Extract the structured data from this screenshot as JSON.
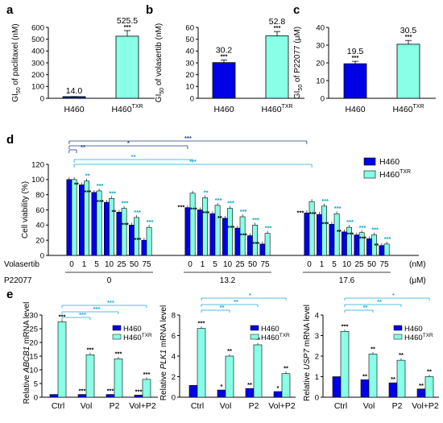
{
  "colors": {
    "h460": "#0000e6",
    "h460txr": "#88ffe6",
    "blue_bracket": "#1f3b7a",
    "cyan_bracket": "#1aaad4",
    "cyan_star": "#0aa4cc"
  },
  "panels": {
    "a": "a",
    "b": "b",
    "c": "c",
    "d": "d",
    "e": "e"
  },
  "ylabel_gi50_prefix": "GI",
  "ylabel_gi50_sub": "50",
  "ylabel_viability": "Cell viability (%)",
  "ylabel_relative": "Relative",
  "ylabel_mrna": "mRNA level",
  "sig3": "***",
  "sig2": "**",
  "sig1": "*",
  "legend": {
    "h460": "H460",
    "txr_base": "H460",
    "txr_sup": "TXR"
  },
  "unit_nm": "(nM)",
  "unit_um": "(μM)",
  "row_labels": {
    "volasertib": "Volasertib",
    "p22077": "P22077"
  },
  "chart_data": [
    {
      "panel": "a",
      "type": "bar",
      "ylabel": "of paclitaxel (nM)",
      "categories": [
        "H460",
        "H460TXR"
      ],
      "values": [
        14.0,
        525.5
      ],
      "value_labels": [
        "14.0",
        "525.5"
      ],
      "ylim": [
        0,
        600
      ],
      "yticks": [
        "0",
        "100",
        "200",
        "300",
        "400",
        "500",
        "600"
      ],
      "significance": [
        "",
        "***"
      ]
    },
    {
      "panel": "b",
      "type": "bar",
      "ylabel": "of volasertib (nM)",
      "categories": [
        "H460",
        "H460TXR"
      ],
      "values": [
        30.2,
        52.8
      ],
      "value_labels": [
        "30.2",
        "52.8"
      ],
      "ylim": [
        0,
        60
      ],
      "yticks": [
        "0",
        "10",
        "20",
        "30",
        "40",
        "50",
        "60"
      ],
      "significance": [
        "***",
        "***"
      ]
    },
    {
      "panel": "c",
      "type": "bar",
      "ylabel": "of P22077 (μM)",
      "categories": [
        "H460",
        "H460TXR"
      ],
      "values": [
        19.5,
        30.5
      ],
      "value_labels": [
        "19.5",
        "30.5"
      ],
      "ylim": [
        0,
        40
      ],
      "yticks": [
        "0",
        "10",
        "20",
        "30",
        "40"
      ],
      "significance": [
        "***",
        "***"
      ]
    },
    {
      "panel": "d",
      "type": "bar",
      "ylabel": "Cell viability (%)",
      "ylim": [
        0,
        120
      ],
      "yticks": [
        "0",
        "20",
        "40",
        "60",
        "80",
        "100",
        "120"
      ],
      "volasertib_nM": [
        "0",
        "1",
        "5",
        "10",
        "25",
        "50",
        "75"
      ],
      "groups": [
        {
          "p22077_uM": "0",
          "h460": [
            100,
            93,
            83,
            70,
            57,
            40,
            20
          ],
          "h460txr": [
            100,
            98,
            85,
            75,
            62,
            50,
            37
          ]
        },
        {
          "p22077_uM": "13.2",
          "h460": [
            63,
            60,
            55,
            49,
            36,
            26,
            15
          ],
          "h460txr": [
            82,
            76,
            66,
            62,
            51,
            40,
            29
          ]
        },
        {
          "p22077_uM": "17.6",
          "h460": [
            56,
            54,
            41,
            31,
            27,
            22,
            13
          ],
          "h460txr": [
            71,
            65,
            55,
            37,
            30,
            27,
            15
          ]
        }
      ],
      "h460_stars": [
        [
          "",
          "**",
          "***",
          "***",
          "**",
          "***",
          "***"
        ],
        [
          "***",
          "***",
          "***",
          "**",
          "***",
          "***",
          "***"
        ],
        [
          "***",
          "***",
          "***",
          "**",
          "***",
          "***",
          "**"
        ]
      ],
      "txr_stars": [
        [
          "",
          "**",
          "***",
          "***",
          "***",
          "***",
          "***"
        ],
        [
          "",
          "**",
          "***",
          "***",
          "***",
          "***",
          "***"
        ],
        [
          "",
          "***",
          "***",
          "***",
          "***",
          "***",
          "***"
        ]
      ],
      "brackets": [
        "**",
        "*",
        "**",
        "***",
        "***"
      ]
    },
    {
      "panel": "e1",
      "type": "bar",
      "gene": "ABCB1",
      "ylim": [
        0,
        30
      ],
      "yticks": [
        "0",
        "5",
        "10",
        "15",
        "20",
        "25",
        "30"
      ],
      "categories": [
        "Ctrl",
        "Vol",
        "P2",
        "Vol+P2"
      ],
      "h460": [
        1.0,
        1.0,
        1.0,
        0.8
      ],
      "h460txr": [
        27.5,
        15.5,
        14.0,
        6.5
      ],
      "h460_stars": [
        "",
        "***",
        "***",
        "***"
      ],
      "txr_stars": [
        "***",
        "***",
        "***",
        "***"
      ],
      "brackets": [
        "***",
        "***",
        "***",
        "*"
      ]
    },
    {
      "panel": "e2",
      "type": "bar",
      "gene": "PLK1",
      "ylim": [
        0,
        8
      ],
      "yticks": [
        "0",
        "2",
        "4",
        "6",
        "8"
      ],
      "categories": [
        "Ctrl",
        "Vol",
        "P2",
        "Vol+P2"
      ],
      "h460": [
        1.15,
        0.7,
        0.85,
        0.55
      ],
      "h460txr": [
        6.7,
        4.0,
        5.1,
        2.3
      ],
      "h460_stars": [
        "",
        "*",
        "**",
        "*"
      ],
      "txr_stars": [
        "***",
        "**",
        "**",
        "**"
      ],
      "brackets": [
        "*",
        "**",
        "**",
        "*"
      ]
    },
    {
      "panel": "e3",
      "type": "bar",
      "gene": "USP7",
      "ylim": [
        0,
        4
      ],
      "yticks": [
        "0",
        "1",
        "2",
        "3",
        "4"
      ],
      "categories": [
        "Ctrl",
        "Vol",
        "P2",
        "Vol+P2"
      ],
      "h460": [
        1.0,
        0.85,
        0.7,
        0.4
      ],
      "h460txr": [
        3.2,
        2.1,
        1.8,
        1.0
      ],
      "h460_stars": [
        "",
        "**",
        "**",
        "**"
      ],
      "txr_stars": [
        "***",
        "**",
        "**",
        "**"
      ],
      "brackets": [
        "*",
        "**",
        "**",
        "*"
      ]
    }
  ]
}
